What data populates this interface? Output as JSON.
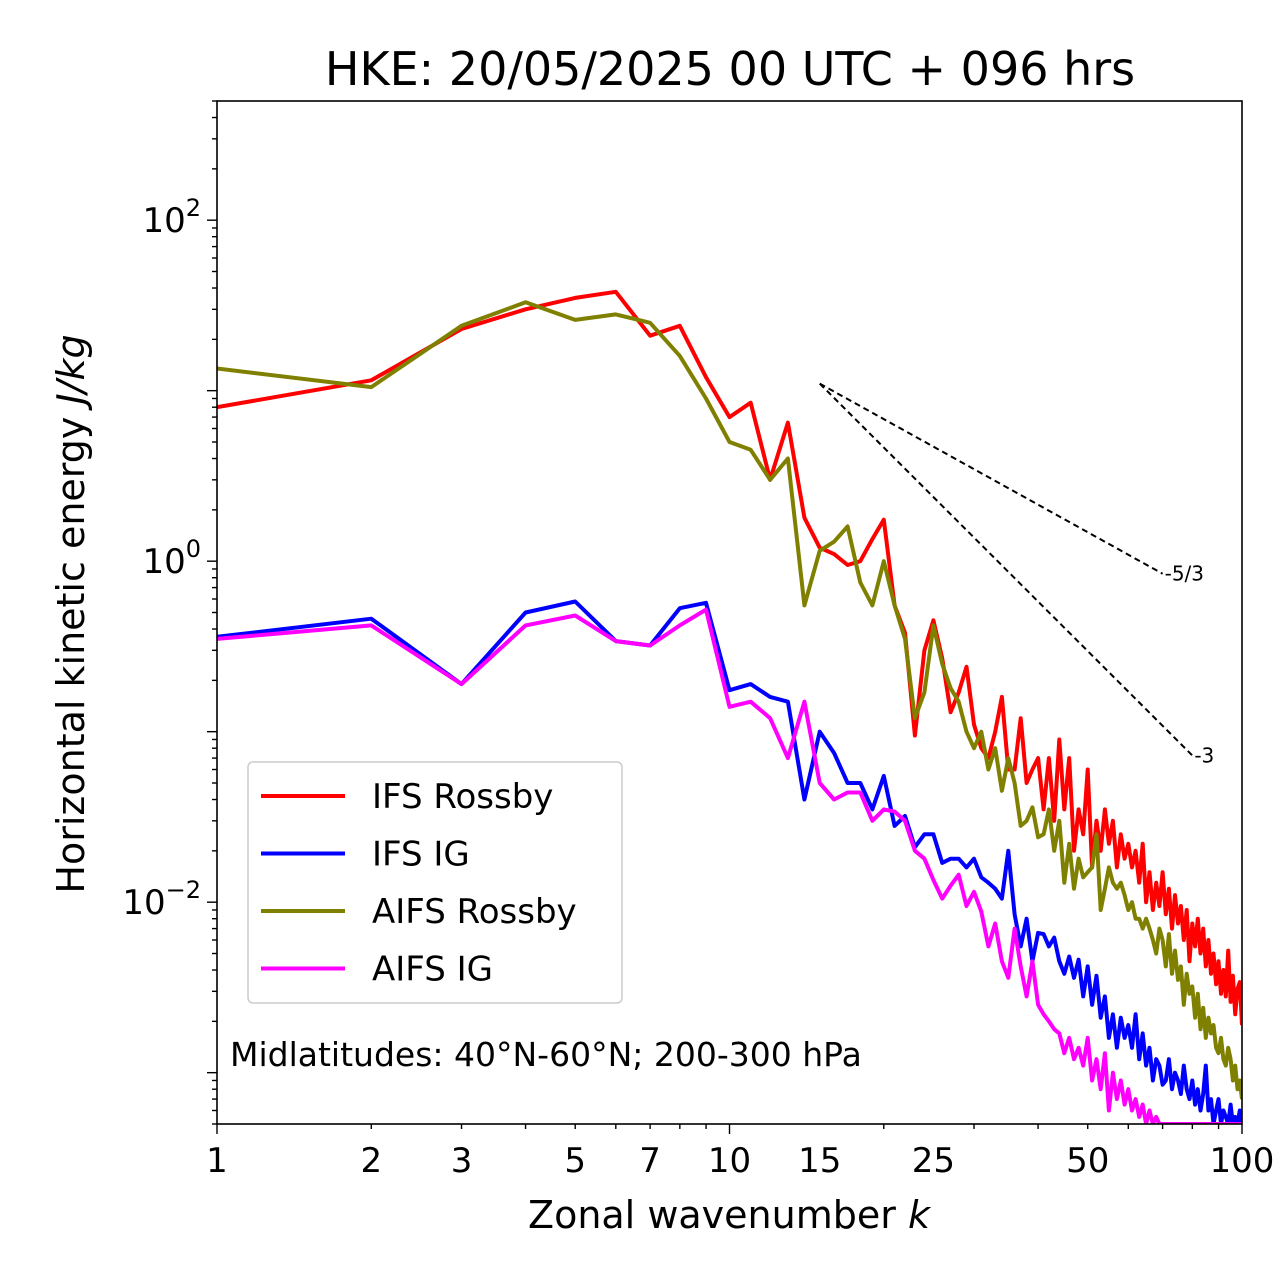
{
  "chart_data": {
    "type": "line",
    "title": "HKE: 20/05/2025 00 UTC + 096 hrs",
    "xlabel": "Zonal wavenumber",
    "xlabel_italic": "k",
    "ylabel": "Horizontal kinetic energy",
    "ylabel_italic": "J/kg",
    "x_scale": "log",
    "y_scale": "log",
    "xlim": [
      1,
      100
    ],
    "ylim": [
      0.0005,
      500
    ],
    "x_ticks": [
      1,
      2,
      3,
      5,
      7,
      10,
      15,
      25,
      50,
      100
    ],
    "x_tick_labels": [
      "1",
      "2",
      "3",
      "5",
      "7",
      "10",
      "15",
      "25",
      "50",
      "100"
    ],
    "y_ticks": [
      {
        "value": 100,
        "base": "10",
        "exp": "2"
      },
      {
        "value": 1,
        "base": "10",
        "exp": "0"
      },
      {
        "value": 0.01,
        "base": "10",
        "exp": "−2"
      }
    ],
    "grid": false,
    "legend_position": "lower-left",
    "annotation": "Midlatitudes: 40°N-60°N; 200-300 hPa",
    "reference_slopes": [
      {
        "label": "-5/3",
        "slope": -1.6667,
        "x_start": 15,
        "y_start": 11,
        "x_end": 70
      },
      {
        "label": "-3",
        "slope": -3,
        "x_start": 15,
        "y_start": 11,
        "x_end": 80
      }
    ],
    "series": [
      {
        "name": "IFS Rossby",
        "color": "#ff0000",
        "x": [
          1,
          2,
          3,
          4,
          5,
          6,
          7,
          8,
          9,
          10,
          11,
          12,
          13,
          14,
          15,
          16,
          17,
          18,
          19,
          20,
          21,
          22,
          23,
          24,
          25,
          26,
          27,
          28,
          29,
          30,
          31,
          32,
          33,
          34,
          35,
          36,
          37,
          38,
          39,
          40,
          41,
          42,
          43,
          44,
          45,
          46,
          47,
          48,
          49,
          50,
          51,
          52,
          53,
          54,
          55,
          56,
          57,
          58,
          59,
          60,
          61,
          62,
          63,
          64,
          65,
          66,
          67,
          68,
          69,
          70,
          71,
          72,
          73,
          74,
          75,
          76,
          77,
          78,
          79,
          80,
          81,
          82,
          83,
          84,
          85,
          86,
          87,
          88,
          89,
          90,
          91,
          92,
          93,
          94,
          95,
          96,
          97,
          98,
          99,
          100
        ],
        "y": [
          8.0,
          11.5,
          23,
          30,
          35,
          38,
          21,
          24,
          12,
          7.0,
          8.5,
          3.0,
          6.5,
          1.8,
          1.2,
          1.1,
          0.95,
          1.0,
          1.35,
          1.75,
          0.55,
          0.38,
          0.095,
          0.3,
          0.45,
          0.27,
          0.13,
          0.17,
          0.24,
          0.11,
          0.08,
          0.07,
          0.1,
          0.16,
          0.06,
          0.06,
          0.12,
          0.05,
          0.06,
          0.07,
          0.035,
          0.07,
          0.03,
          0.09,
          0.035,
          0.07,
          0.02,
          0.035,
          0.025,
          0.06,
          0.016,
          0.03,
          0.02,
          0.035,
          0.022,
          0.03,
          0.016,
          0.025,
          0.018,
          0.022,
          0.016,
          0.02,
          0.013,
          0.022,
          0.01,
          0.015,
          0.009,
          0.013,
          0.0095,
          0.015,
          0.0085,
          0.012,
          0.007,
          0.011,
          0.0075,
          0.0095,
          0.006,
          0.009,
          0.0045,
          0.0075,
          0.0055,
          0.008,
          0.005,
          0.007,
          0.0042,
          0.006,
          0.0038,
          0.005,
          0.0033,
          0.0045,
          0.0029,
          0.004,
          0.0028,
          0.0052,
          0.0026,
          0.0037,
          0.0022,
          0.0031,
          0.0034,
          0.0019
        ]
      },
      {
        "name": "IFS IG",
        "color": "#0000ff",
        "x": [
          1,
          2,
          3,
          4,
          5,
          6,
          7,
          8,
          9,
          10,
          11,
          12,
          13,
          14,
          15,
          16,
          17,
          18,
          19,
          20,
          21,
          22,
          23,
          24,
          25,
          26,
          27,
          28,
          29,
          30,
          31,
          32,
          33,
          34,
          35,
          36,
          37,
          38,
          39,
          40,
          41,
          42,
          43,
          44,
          45,
          46,
          47,
          48,
          49,
          50,
          51,
          52,
          53,
          54,
          55,
          56,
          57,
          58,
          59,
          60,
          61,
          62,
          63,
          64,
          65,
          66,
          67,
          68,
          69,
          70,
          71,
          72,
          73,
          74,
          75,
          76,
          77,
          78,
          79,
          80,
          81,
          82,
          83,
          84,
          85,
          86,
          87,
          88,
          89,
          90,
          91,
          92,
          93,
          94,
          95,
          96,
          97,
          98,
          99,
          100
        ],
        "y": [
          0.36,
          0.46,
          0.19,
          0.5,
          0.58,
          0.34,
          0.32,
          0.53,
          0.57,
          0.175,
          0.19,
          0.16,
          0.15,
          0.04,
          0.1,
          0.075,
          0.05,
          0.05,
          0.035,
          0.055,
          0.028,
          0.032,
          0.021,
          0.025,
          0.025,
          0.017,
          0.018,
          0.018,
          0.016,
          0.018,
          0.014,
          0.013,
          0.012,
          0.0105,
          0.02,
          0.0085,
          0.0055,
          0.008,
          0.0045,
          0.0066,
          0.0065,
          0.0055,
          0.0062,
          0.0045,
          0.0038,
          0.0048,
          0.0036,
          0.0046,
          0.0028,
          0.0042,
          0.0025,
          0.0037,
          0.0021,
          0.0028,
          0.0016,
          0.0022,
          0.0014,
          0.0021,
          0.0016,
          0.0019,
          0.0014,
          0.0022,
          0.0012,
          0.0017,
          0.0011,
          0.0014,
          0.0009,
          0.0012,
          0.0011,
          0.00085,
          0.0009,
          0.0012,
          0.0008,
          0.001,
          0.0009,
          0.00075,
          0.0011,
          0.0008,
          0.0007,
          0.0009,
          0.00065,
          0.0008,
          0.0006,
          0.00075,
          0.0011,
          0.0006,
          0.0007,
          0.0005,
          0.0006,
          0.0007,
          0.0005,
          0.0006,
          0.00055,
          0.0005,
          0.00065,
          0.0005,
          0.00055,
          0.0005,
          0.0006,
          0.0005
        ]
      },
      {
        "name": "AIFS Rossby",
        "color": "#808000",
        "x": [
          1,
          2,
          3,
          4,
          5,
          6,
          7,
          8,
          9,
          10,
          11,
          12,
          13,
          14,
          15,
          16,
          17,
          18,
          19,
          20,
          21,
          22,
          23,
          24,
          25,
          26,
          27,
          28,
          29,
          30,
          31,
          32,
          33,
          34,
          35,
          36,
          37,
          38,
          39,
          40,
          41,
          42,
          43,
          44,
          45,
          46,
          47,
          48,
          49,
          50,
          51,
          52,
          53,
          54,
          55,
          56,
          57,
          58,
          59,
          60,
          61,
          62,
          63,
          64,
          65,
          66,
          67,
          68,
          69,
          70,
          71,
          72,
          73,
          74,
          75,
          76,
          77,
          78,
          79,
          80,
          81,
          82,
          83,
          84,
          85,
          86,
          87,
          88,
          89,
          90,
          91,
          92,
          93,
          94,
          95,
          96,
          97,
          98,
          99,
          100
        ],
        "y": [
          13.5,
          10.5,
          24,
          33,
          26,
          28,
          25,
          16,
          9.0,
          5.0,
          4.5,
          3.0,
          4.0,
          0.55,
          1.15,
          1.3,
          1.6,
          0.75,
          0.55,
          1.0,
          0.55,
          0.35,
          0.12,
          0.17,
          0.42,
          0.25,
          0.18,
          0.15,
          0.1,
          0.08,
          0.1,
          0.06,
          0.08,
          0.045,
          0.07,
          0.05,
          0.028,
          0.03,
          0.036,
          0.024,
          0.025,
          0.035,
          0.02,
          0.03,
          0.013,
          0.022,
          0.012,
          0.018,
          0.014,
          0.015,
          0.016,
          0.025,
          0.009,
          0.012,
          0.016,
          0.013,
          0.012,
          0.013,
          0.011,
          0.009,
          0.01,
          0.008,
          0.008,
          0.007,
          0.008,
          0.007,
          0.006,
          0.005,
          0.007,
          0.006,
          0.0042,
          0.0065,
          0.0038,
          0.0052,
          0.0035,
          0.0042,
          0.0025,
          0.0038,
          0.0029,
          0.0032,
          0.0021,
          0.0029,
          0.0018,
          0.0024,
          0.0016,
          0.0021,
          0.0017,
          0.0019,
          0.0014,
          0.0013,
          0.0016,
          0.0012,
          0.0011,
          0.0014,
          0.0012,
          0.0009,
          0.0011,
          0.0008,
          0.0009,
          0.0007
        ]
      },
      {
        "name": "AIFS IG",
        "color": "#ff00ff",
        "x": [
          1,
          2,
          3,
          4,
          5,
          6,
          7,
          8,
          9,
          10,
          11,
          12,
          13,
          14,
          15,
          16,
          17,
          18,
          19,
          20,
          21,
          22,
          23,
          24,
          25,
          26,
          27,
          28,
          29,
          30,
          31,
          32,
          33,
          34,
          35,
          36,
          37,
          38,
          39,
          40,
          41,
          42,
          43,
          44,
          45,
          46,
          47,
          48,
          49,
          50,
          51,
          52,
          53,
          54,
          55,
          56,
          57,
          58,
          59,
          60,
          61,
          62,
          63,
          64,
          65,
          66,
          67,
          68,
          69,
          70,
          71,
          72,
          73,
          74,
          75,
          76,
          77,
          78,
          79,
          80,
          81,
          82,
          83,
          84,
          85,
          86,
          87,
          88,
          89,
          90,
          91,
          92,
          93,
          94,
          95,
          96,
          97,
          98,
          99,
          100
        ],
        "y": [
          0.35,
          0.42,
          0.19,
          0.42,
          0.48,
          0.34,
          0.32,
          0.42,
          0.52,
          0.14,
          0.15,
          0.12,
          0.07,
          0.15,
          0.05,
          0.04,
          0.044,
          0.044,
          0.03,
          0.035,
          0.034,
          0.03,
          0.02,
          0.018,
          0.0135,
          0.0105,
          0.0125,
          0.0145,
          0.0095,
          0.0115,
          0.0088,
          0.0055,
          0.0075,
          0.0045,
          0.0036,
          0.007,
          0.0042,
          0.0028,
          0.0045,
          0.0025,
          0.0022,
          0.002,
          0.0018,
          0.0017,
          0.0013,
          0.0016,
          0.0012,
          0.0014,
          0.0011,
          0.0016,
          0.0009,
          0.0012,
          0.0008,
          0.0013,
          0.0006,
          0.001,
          0.0007,
          0.0009,
          0.00065,
          0.0008,
          0.0006,
          0.0007,
          0.00055,
          0.00065,
          0.0005,
          0.0006,
          0.0005,
          0.00055,
          0.0005,
          0.0005,
          0.0005,
          0.0005,
          0.0005,
          0.0005,
          0.0005,
          0.0005,
          0.0005,
          0.0005,
          0.0005,
          0.0005,
          0.0005,
          0.0005,
          0.0005,
          0.0005,
          0.0005,
          0.0005,
          0.0005,
          0.0005,
          0.0005,
          0.0005,
          0.0005,
          0.0005,
          0.0005,
          0.0005,
          0.0005,
          0.0005,
          0.0005,
          0.0005,
          0.0005,
          0.0005
        ]
      }
    ]
  }
}
